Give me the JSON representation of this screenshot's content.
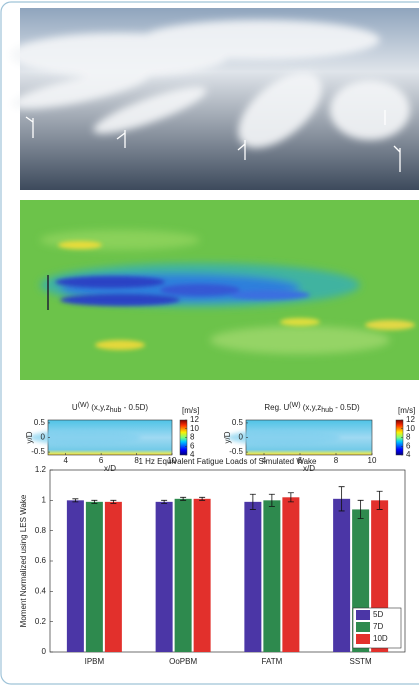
{
  "chart_data": [
    {
      "type": "contour",
      "title": [
        "U",
        "(W)",
        " (x,y,z",
        "hub",
        " - 0.5D)"
      ],
      "xlabel": "x/D",
      "ylabel": "y/D",
      "xlim": [
        3,
        10
      ],
      "ylim": [
        -0.6,
        0.6
      ],
      "xticks": [
        4,
        6,
        8,
        10
      ],
      "yticks": [
        -0.5,
        0,
        0.5
      ],
      "colorbar_label": "[m/s]",
      "clim": [
        4,
        12
      ],
      "cticks": [
        4,
        6,
        8,
        10,
        12
      ]
    },
    {
      "type": "contour",
      "title": [
        "Reg. U",
        "(W)",
        " (x,y,z",
        "hub",
        " - 0.5D)"
      ],
      "xlabel": "x/D",
      "ylabel": "y/D",
      "xlim": [
        3,
        10
      ],
      "ylim": [
        -0.6,
        0.6
      ],
      "xticks": [
        4,
        6,
        8,
        10
      ],
      "yticks": [
        -0.5,
        0,
        0.5
      ],
      "colorbar_label": "[m/s]",
      "clim": [
        4,
        12
      ],
      "cticks": [
        4,
        6,
        8,
        10,
        12
      ]
    },
    {
      "type": "bar",
      "title": "1 Hz Equivalent Fatigue Loads of Simulated Wake",
      "ylabel": "Moment Normalized using LES Wake",
      "categories": [
        "IPBM",
        "OoPBM",
        "FATM",
        "SSTM"
      ],
      "series": [
        {
          "name": "5D",
          "color": "#4b36a6",
          "values": [
            1.0,
            0.99,
            0.99,
            1.01
          ],
          "errors": [
            0.01,
            0.01,
            0.05,
            0.08
          ]
        },
        {
          "name": "7D",
          "color": "#2e8a4e",
          "values": [
            0.99,
            1.01,
            1.0,
            0.94
          ],
          "errors": [
            0.01,
            0.01,
            0.04,
            0.06
          ]
        },
        {
          "name": "10D",
          "color": "#e2302c",
          "values": [
            0.99,
            1.01,
            1.02,
            1.0
          ],
          "errors": [
            0.01,
            0.01,
            0.03,
            0.06
          ]
        }
      ],
      "ylim": [
        0,
        1.2
      ],
      "yticks": [
        0,
        0.2,
        0.4,
        0.6,
        0.8,
        1,
        1.2
      ],
      "legend": "lower right"
    }
  ]
}
